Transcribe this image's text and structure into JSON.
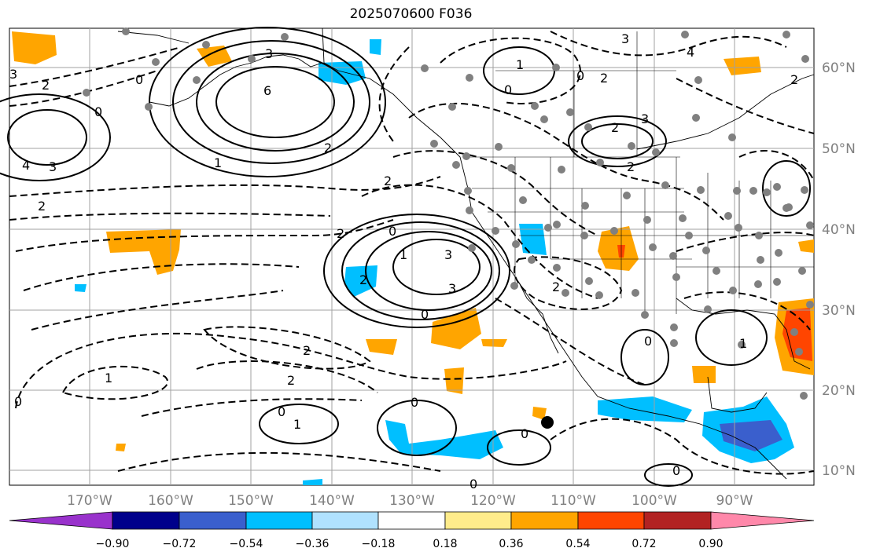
{
  "title": "2025070600 F036",
  "map": {
    "lon_labels": [
      "170°W",
      "160°W",
      "150°W",
      "140°W",
      "130°W",
      "120°W",
      "110°W",
      "100°W",
      "90°W"
    ],
    "lat_labels": [
      "60°N",
      "50°N",
      "40°N",
      "30°N",
      "20°N",
      "10°N"
    ],
    "contour_labels": [
      "3",
      "2",
      "0",
      "2",
      "3",
      "4",
      "6",
      "3",
      "2",
      "1",
      "0",
      "2",
      "3",
      "2",
      "0",
      "1",
      "2",
      "0",
      "2",
      "3",
      "2",
      "0",
      "1",
      "3",
      "4",
      "2",
      "0",
      "3",
      "2",
      "1",
      "2",
      "2",
      "0",
      "2",
      "1",
      "0",
      "1",
      "0",
      "0",
      "0",
      "0",
      "0"
    ],
    "colors": {
      "land_border": "#000000",
      "grid": "#a0a0a0",
      "station": "#808080",
      "marker": "#000000"
    }
  },
  "colorbar": {
    "ticks": [
      "−0.90",
      "−0.72",
      "−0.54",
      "−0.36",
      "−0.18",
      "0.18",
      "0.36",
      "0.54",
      "0.72",
      "0.90"
    ],
    "colors": [
      "#9932cc",
      "#00008b",
      "#3a5fcd",
      "#00bfff",
      "#b0e2ff",
      "#ffffff",
      "#ffec8b",
      "#ffa500",
      "#ff4500",
      "#b22222",
      "#ff88aa"
    ]
  }
}
